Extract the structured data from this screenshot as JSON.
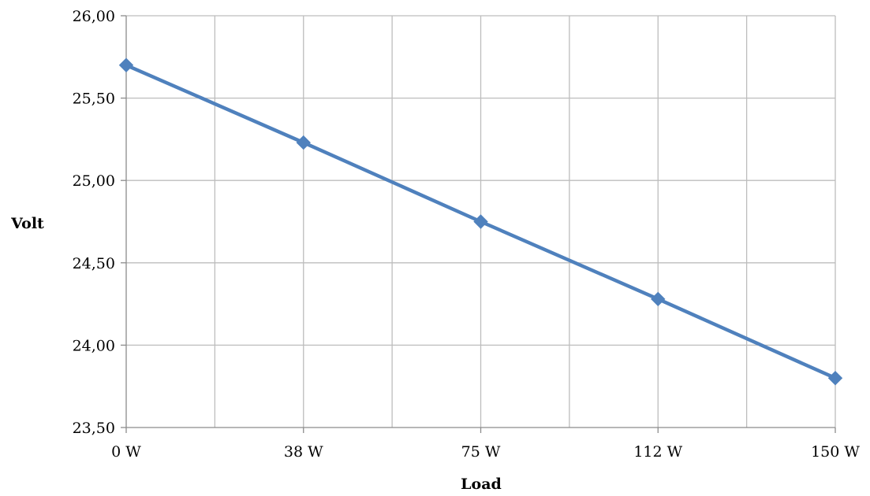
{
  "chart_data": {
    "type": "line",
    "categories": [
      "0 W",
      "38 W",
      "75 W",
      "112 W",
      "150 W"
    ],
    "series": [
      {
        "values": [
          25.7,
          25.23,
          24.75,
          24.28,
          23.8
        ],
        "color": "#4f81bd"
      }
    ],
    "xlabel": "Load",
    "ylabel": "Volt",
    "ylim": [
      23.5,
      26.0
    ],
    "yticks": [
      "23,50",
      "24,00",
      "24,50",
      "25,00",
      "25,50",
      "26,00"
    ],
    "grid": true,
    "marker": "diamond",
    "legend": "none"
  }
}
